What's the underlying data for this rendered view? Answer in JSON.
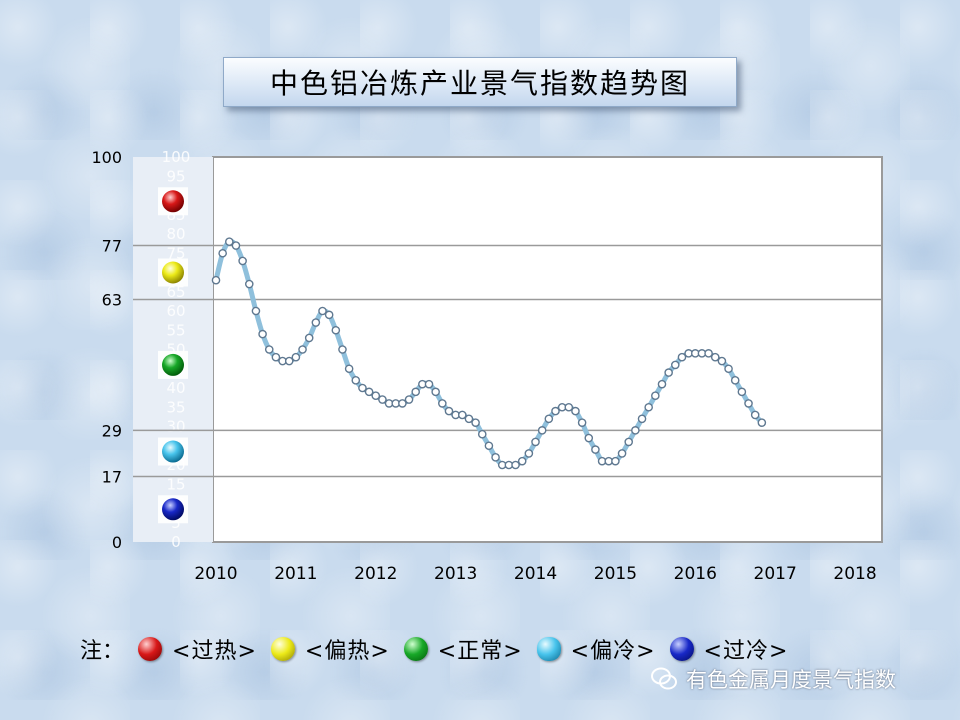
{
  "title": "中色铝冶炼产业景气指数趋势图",
  "chart_data": {
    "type": "line",
    "title": "中色铝冶炼产业景气指数趋势图",
    "ylim": [
      0,
      100
    ],
    "y_ticks": [
      0,
      17,
      29,
      63,
      77,
      100
    ],
    "x_ticks": [
      "2010",
      "2011",
      "2012",
      "2013",
      "2014",
      "2015",
      "2016",
      "2017",
      "2018"
    ],
    "xlim": [
      2010.0,
      2018.3
    ],
    "grid": "horizontal at y ticks",
    "band_scale_labels": [
      "100",
      "95",
      "90",
      "85",
      "80",
      "75",
      "70",
      "65",
      "60",
      "55",
      "50",
      "45",
      "40",
      "35",
      "30",
      "25",
      "20",
      "15",
      "10",
      "5",
      "0"
    ],
    "series": [
      {
        "x_start": "2010-01",
        "interval": "monthly",
        "values": [
          68,
          75,
          78,
          77,
          73,
          67,
          60,
          54,
          50,
          48,
          47,
          47,
          48,
          50,
          53,
          57,
          60,
          59,
          55,
          50,
          45,
          42,
          40,
          39,
          38,
          37,
          36,
          36,
          36,
          37,
          39,
          41,
          41,
          39,
          36,
          34,
          33,
          33,
          32,
          31,
          28,
          25,
          22,
          20,
          20,
          20,
          21,
          23,
          26,
          29,
          32,
          34,
          35,
          35,
          34,
          31,
          27,
          24,
          21,
          21,
          21,
          23,
          26,
          29,
          32,
          35,
          38,
          41,
          44,
          46,
          48,
          49,
          49,
          49,
          49,
          48,
          47,
          45,
          42,
          39,
          36,
          33,
          31
        ]
      }
    ]
  },
  "legend": {
    "note": "注：",
    "items": [
      {
        "label": "<过热>",
        "color": "#cc1010"
      },
      {
        "label": "<偏热>",
        "color": "#e6e010"
      },
      {
        "label": "<正常>",
        "color": "#10a020"
      },
      {
        "label": "<偏冷>",
        "color": "#40c0e8"
      },
      {
        "label": "<过冷>",
        "color": "#1020c0"
      }
    ]
  },
  "watermark": "有色金属月度景气指数"
}
